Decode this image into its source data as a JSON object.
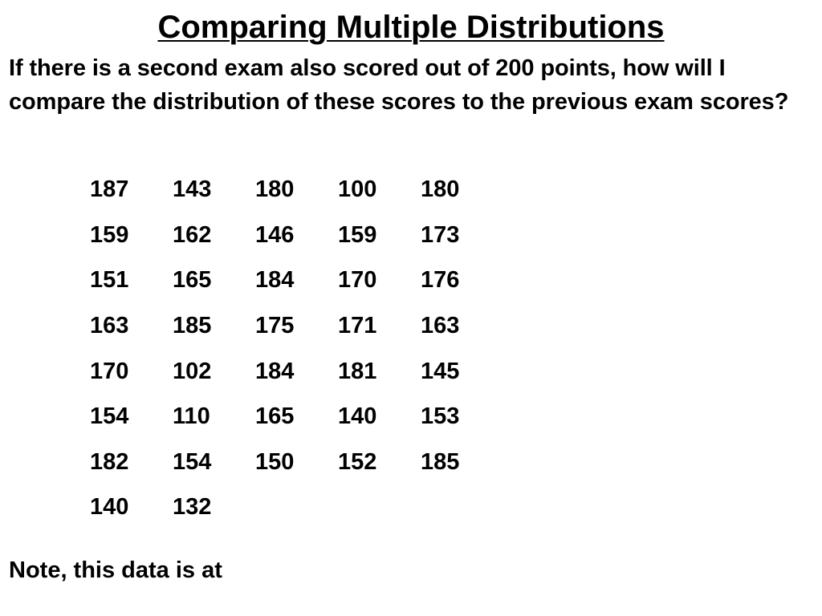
{
  "slide": {
    "title": "Comparing Multiple Distributions",
    "question": "If there is a second exam also scored out of 200 points,  how will I compare the distribution of these scores to the previous exam scores?",
    "scores": [
      [
        "187",
        "143",
        "180",
        "100",
        "180"
      ],
      [
        "159",
        "162",
        "146",
        "159",
        "173"
      ],
      [
        "151",
        "165",
        "184",
        "170",
        "176"
      ],
      [
        "163",
        "185",
        "175",
        "171",
        "163"
      ],
      [
        "170",
        "102",
        "184",
        "181",
        "145"
      ],
      [
        "154",
        "110",
        "165",
        "140",
        "153"
      ],
      [
        "182",
        "154",
        "150",
        "152",
        "185"
      ],
      [
        "140",
        "132"
      ]
    ],
    "note": "Note, this data is at"
  }
}
